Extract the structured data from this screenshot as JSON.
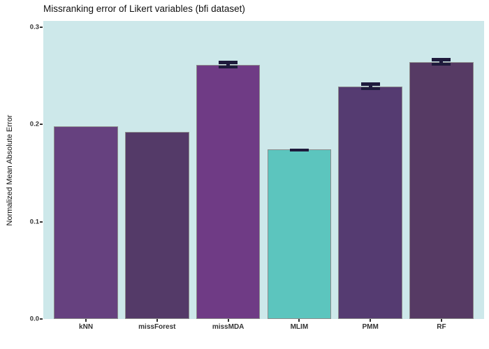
{
  "title": "Missranking error of Likert variables (bfi dataset)",
  "ylabel": "Normalized Mean Absolute Error",
  "chart_data": {
    "type": "bar",
    "title": "Missranking error of Likert variables (bfi dataset)",
    "xlabel": "",
    "ylabel": "Normalized Mean Absolute Error",
    "categories": [
      "kNN",
      "missForest",
      "missMDA",
      "MLIM",
      "PMM",
      "RF"
    ],
    "values": [
      0.198,
      0.192,
      0.261,
      0.174,
      0.239,
      0.264
    ],
    "error_bars": [
      null,
      null,
      0.004,
      0.001,
      0.004,
      0.004
    ],
    "bar_colors": [
      "#66417F",
      "#543A68",
      "#6F3B85",
      "#5CC5BE",
      "#553B71",
      "#563A64"
    ],
    "bar_border_color": "#8c8c8c",
    "error_bar_color": "#1E1A3C",
    "panel_background": "#CDE8EA",
    "outer_background": "#ffffff",
    "ytick_labels": [
      "0.0",
      "0.1",
      "0.2",
      "0.3"
    ],
    "ytick_values": [
      0.0,
      0.1,
      0.2,
      0.3
    ],
    "ylim": [
      0,
      0.306
    ],
    "grid": false,
    "legend": "none"
  }
}
